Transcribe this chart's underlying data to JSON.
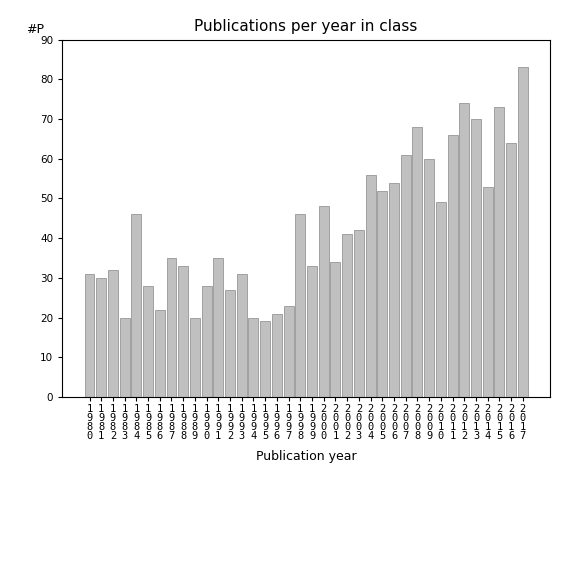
{
  "title": "Publications per year in class",
  "xlabel": "Publication year",
  "ylabel": "#P",
  "years": [
    "1980",
    "1981",
    "1982",
    "1983",
    "1984",
    "1985",
    "1986",
    "1987",
    "1988",
    "1989",
    "1990",
    "1991",
    "1992",
    "1993",
    "1994",
    "1995",
    "1996",
    "1997",
    "1998",
    "1999",
    "2000",
    "2001",
    "2002",
    "2003",
    "2004",
    "2005",
    "2006",
    "2007",
    "2008",
    "2009",
    "2010",
    "2011",
    "2012",
    "2013",
    "2014",
    "2015",
    "2016",
    "2017"
  ],
  "values": [
    31,
    30,
    32,
    20,
    46,
    28,
    22,
    35,
    33,
    20,
    28,
    35,
    27,
    31,
    20,
    19,
    21,
    23,
    46,
    33,
    48,
    34,
    41,
    42,
    56,
    52,
    54,
    61,
    68,
    60,
    49,
    66,
    74,
    70,
    53,
    73,
    64,
    83
  ],
  "bar_color": "#c0c0c0",
  "bar_edge_color": "#888888",
  "ylim": [
    0,
    90
  ],
  "yticks": [
    0,
    10,
    20,
    30,
    40,
    50,
    60,
    70,
    80,
    90
  ],
  "bg_color": "#ffffff",
  "title_fontsize": 11,
  "label_fontsize": 9,
  "tick_fontsize": 7.5
}
